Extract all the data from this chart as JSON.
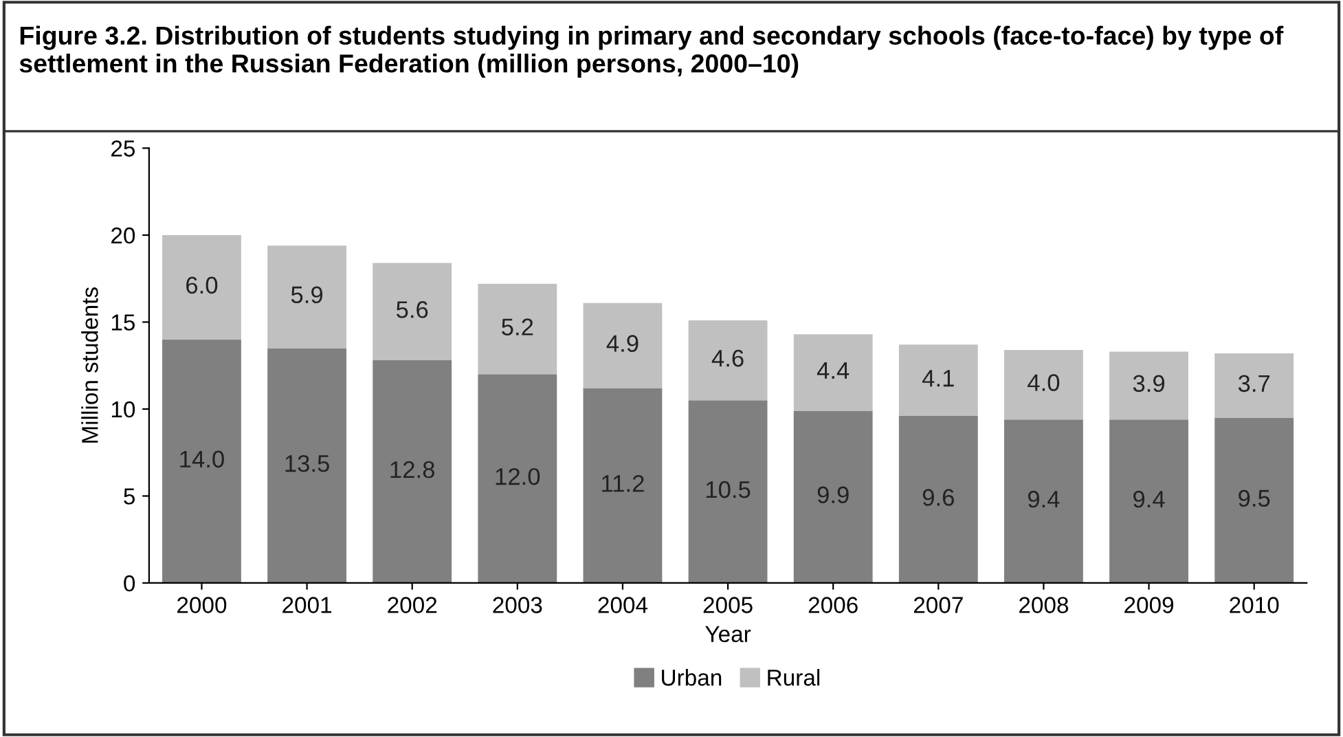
{
  "chart_data": {
    "type": "bar",
    "title": "Figure 3.2. Distribution of students studying in primary and secondary schools (face-to-face) by type of settlement in the Russian Federation (million persons, 2000–10)",
    "xlabel": "Year",
    "ylabel": "Million students",
    "categories": [
      "2000",
      "2001",
      "2002",
      "2003",
      "2004",
      "2005",
      "2006",
      "2007",
      "2008",
      "2009",
      "2010"
    ],
    "series": [
      {
        "name": "Urban",
        "color": "#808080",
        "values": [
          14.0,
          13.5,
          12.8,
          12.0,
          11.2,
          10.5,
          9.9,
          9.6,
          9.4,
          9.4,
          9.5
        ],
        "value_labels": [
          "14.0",
          "13.5",
          "12.8",
          "12.0",
          "11.2",
          "10.5",
          "9.9",
          "9.6",
          "9.4",
          "9.4",
          "9.5"
        ]
      },
      {
        "name": "Rural",
        "color": "#c0c0c0",
        "values": [
          6.0,
          5.9,
          5.6,
          5.2,
          4.9,
          4.6,
          4.4,
          4.1,
          4.0,
          3.9,
          3.7
        ],
        "value_labels": [
          "6.0",
          "5.9",
          "5.6",
          "5.2",
          "4.9",
          "4.6",
          "4.4",
          "4.1",
          "4.0",
          "3.9",
          "3.7"
        ]
      }
    ],
    "stacked": true,
    "ylim": [
      0,
      25
    ],
    "yticks": [
      0,
      5,
      10,
      15,
      20,
      25
    ],
    "grid": false,
    "legend": "bottom"
  }
}
